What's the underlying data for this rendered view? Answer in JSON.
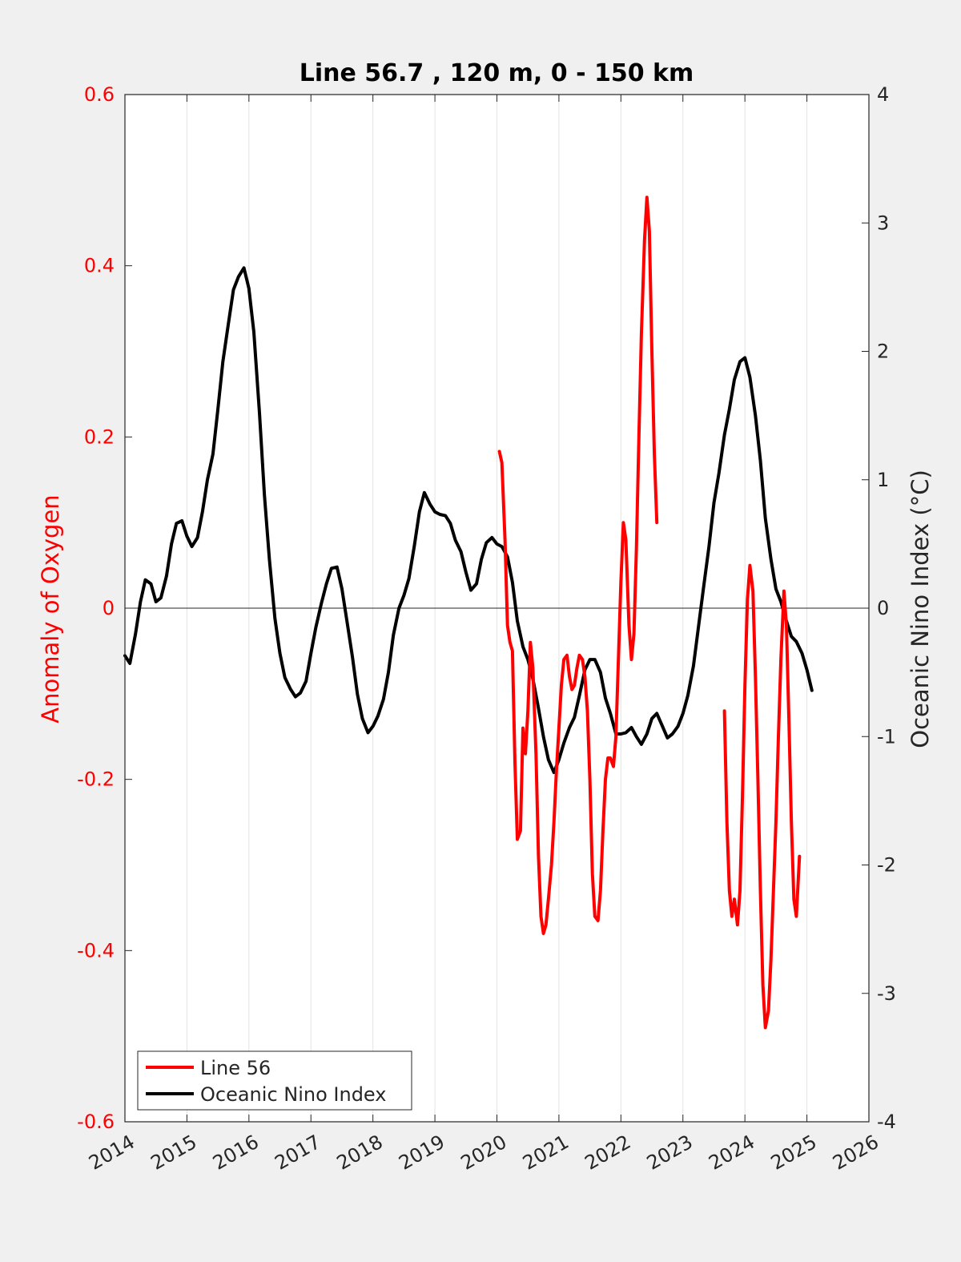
{
  "chart_data": {
    "type": "line",
    "title": "Line 56.7 , 120 m, 0 - 150 km",
    "ylabel_left": "Anomaly of Oxygen",
    "ylabel_right": "Oceanic Nino Index (°C)",
    "xlim": [
      2014,
      2026
    ],
    "ylim_left": [
      -0.6,
      0.6
    ],
    "ylim_right": [
      -4,
      4
    ],
    "xticks": [
      "2014",
      "2015",
      "2016",
      "2017",
      "2018",
      "2019",
      "2020",
      "2021",
      "2022",
      "2023",
      "2024",
      "2025",
      "2026"
    ],
    "yticks_left": [
      "0.6",
      "0.4",
      "0.2",
      "0",
      "-0.2",
      "-0.4",
      "-0.6"
    ],
    "yticks_right": [
      "4",
      "3",
      "2",
      "1",
      "0",
      "-1",
      "-2",
      "-3",
      "-4"
    ],
    "grid": "vertical",
    "zero_line": true,
    "legend_position": "bottom-left",
    "colors": {
      "line56": "#ff0000",
      "oni": "#000000",
      "left_axis": "#ff0000",
      "right_axis": "#262626"
    },
    "series": [
      {
        "name": "Line 56",
        "axis": "left",
        "segments": [
          [
            [
              2020.04,
              0.183
            ],
            [
              2020.08,
              0.17
            ],
            [
              2020.13,
              0.08
            ],
            [
              2020.17,
              -0.02
            ],
            [
              2020.21,
              -0.04
            ],
            [
              2020.25,
              -0.05
            ],
            [
              2020.29,
              -0.18
            ],
            [
              2020.33,
              -0.27
            ],
            [
              2020.38,
              -0.26
            ],
            [
              2020.42,
              -0.14
            ],
            [
              2020.46,
              -0.17
            ],
            [
              2020.5,
              -0.12
            ],
            [
              2020.54,
              -0.04
            ],
            [
              2020.58,
              -0.07
            ],
            [
              2020.63,
              -0.17
            ],
            [
              2020.67,
              -0.29
            ],
            [
              2020.71,
              -0.36
            ],
            [
              2020.75,
              -0.38
            ],
            [
              2020.79,
              -0.37
            ],
            [
              2020.83,
              -0.34
            ],
            [
              2020.88,
              -0.3
            ],
            [
              2020.92,
              -0.25
            ],
            [
              2020.96,
              -0.19
            ],
            [
              2021.0,
              -0.14
            ],
            [
              2021.04,
              -0.09
            ],
            [
              2021.08,
              -0.06
            ],
            [
              2021.13,
              -0.055
            ],
            [
              2021.17,
              -0.08
            ],
            [
              2021.21,
              -0.095
            ],
            [
              2021.25,
              -0.09
            ],
            [
              2021.29,
              -0.07
            ],
            [
              2021.33,
              -0.055
            ],
            [
              2021.38,
              -0.06
            ],
            [
              2021.42,
              -0.08
            ],
            [
              2021.46,
              -0.12
            ],
            [
              2021.5,
              -0.2
            ],
            [
              2021.54,
              -0.31
            ],
            [
              2021.58,
              -0.36
            ],
            [
              2021.63,
              -0.365
            ],
            [
              2021.67,
              -0.33
            ],
            [
              2021.71,
              -0.26
            ],
            [
              2021.75,
              -0.2
            ],
            [
              2021.79,
              -0.175
            ],
            [
              2021.83,
              -0.175
            ],
            [
              2021.88,
              -0.185
            ],
            [
              2021.92,
              -0.15
            ],
            [
              2021.96,
              -0.06
            ],
            [
              2022.0,
              0.03
            ],
            [
              2022.04,
              0.1
            ],
            [
              2022.08,
              0.08
            ],
            [
              2022.13,
              -0.02
            ],
            [
              2022.17,
              -0.06
            ],
            [
              2022.21,
              -0.03
            ],
            [
              2022.25,
              0.07
            ],
            [
              2022.29,
              0.2
            ],
            [
              2022.33,
              0.32
            ],
            [
              2022.38,
              0.43
            ],
            [
              2022.42,
              0.48
            ],
            [
              2022.46,
              0.44
            ],
            [
              2022.5,
              0.3
            ],
            [
              2022.54,
              0.18
            ],
            [
              2022.58,
              0.1
            ]
          ],
          [
            [
              2023.67,
              -0.12
            ],
            [
              2023.71,
              -0.25
            ],
            [
              2023.75,
              -0.33
            ],
            [
              2023.79,
              -0.36
            ],
            [
              2023.83,
              -0.34
            ],
            [
              2023.88,
              -0.37
            ],
            [
              2023.92,
              -0.33
            ],
            [
              2023.96,
              -0.22
            ],
            [
              2024.0,
              -0.09
            ],
            [
              2024.04,
              0.01
            ],
            [
              2024.08,
              0.05
            ],
            [
              2024.13,
              0.02
            ],
            [
              2024.17,
              -0.08
            ],
            [
              2024.21,
              -0.2
            ],
            [
              2024.25,
              -0.33
            ],
            [
              2024.29,
              -0.44
            ],
            [
              2024.33,
              -0.49
            ],
            [
              2024.38,
              -0.47
            ],
            [
              2024.42,
              -0.41
            ],
            [
              2024.46,
              -0.33
            ],
            [
              2024.5,
              -0.25
            ],
            [
              2024.54,
              -0.15
            ],
            [
              2024.58,
              -0.06
            ],
            [
              2024.63,
              0.02
            ],
            [
              2024.67,
              -0.02
            ],
            [
              2024.71,
              -0.13
            ],
            [
              2024.75,
              -0.25
            ],
            [
              2024.79,
              -0.34
            ],
            [
              2024.83,
              -0.36
            ],
            [
              2024.88,
              -0.29
            ]
          ]
        ]
      },
      {
        "name": "Oceanic Nino Index",
        "axis": "right",
        "segments": [
          [
            [
              2014.0,
              -0.37
            ],
            [
              2014.08,
              -0.43
            ],
            [
              2014.17,
              -0.2
            ],
            [
              2014.25,
              0.05
            ],
            [
              2014.33,
              0.22
            ],
            [
              2014.42,
              0.19
            ],
            [
              2014.5,
              0.05
            ],
            [
              2014.58,
              0.08
            ],
            [
              2014.67,
              0.25
            ],
            [
              2014.75,
              0.5
            ],
            [
              2014.83,
              0.66
            ],
            [
              2014.92,
              0.68
            ],
            [
              2015.0,
              0.56
            ],
            [
              2015.08,
              0.48
            ],
            [
              2015.17,
              0.55
            ],
            [
              2015.25,
              0.75
            ],
            [
              2015.33,
              1.0
            ],
            [
              2015.42,
              1.2
            ],
            [
              2015.5,
              1.55
            ],
            [
              2015.58,
              1.92
            ],
            [
              2015.67,
              2.22
            ],
            [
              2015.75,
              2.48
            ],
            [
              2015.83,
              2.58
            ],
            [
              2015.92,
              2.65
            ],
            [
              2016.0,
              2.49
            ],
            [
              2016.08,
              2.15
            ],
            [
              2016.17,
              1.52
            ],
            [
              2016.25,
              0.88
            ],
            [
              2016.33,
              0.38
            ],
            [
              2016.42,
              -0.08
            ],
            [
              2016.5,
              -0.35
            ],
            [
              2016.58,
              -0.54
            ],
            [
              2016.67,
              -0.63
            ],
            [
              2016.75,
              -0.69
            ],
            [
              2016.83,
              -0.66
            ],
            [
              2016.92,
              -0.57
            ],
            [
              2017.0,
              -0.35
            ],
            [
              2017.08,
              -0.15
            ],
            [
              2017.17,
              0.04
            ],
            [
              2017.25,
              0.19
            ],
            [
              2017.33,
              0.31
            ],
            [
              2017.42,
              0.32
            ],
            [
              2017.5,
              0.15
            ],
            [
              2017.58,
              -0.1
            ],
            [
              2017.67,
              -0.38
            ],
            [
              2017.75,
              -0.67
            ],
            [
              2017.83,
              -0.86
            ],
            [
              2017.92,
              -0.97
            ],
            [
              2018.0,
              -0.92
            ],
            [
              2018.08,
              -0.84
            ],
            [
              2018.17,
              -0.71
            ],
            [
              2018.25,
              -0.5
            ],
            [
              2018.33,
              -0.21
            ],
            [
              2018.42,
              0.0
            ],
            [
              2018.5,
              0.1
            ],
            [
              2018.58,
              0.23
            ],
            [
              2018.67,
              0.49
            ],
            [
              2018.75,
              0.75
            ],
            [
              2018.83,
              0.9
            ],
            [
              2018.92,
              0.81
            ],
            [
              2019.0,
              0.75
            ],
            [
              2019.08,
              0.73
            ],
            [
              2019.17,
              0.72
            ],
            [
              2019.25,
              0.66
            ],
            [
              2019.33,
              0.53
            ],
            [
              2019.42,
              0.44
            ],
            [
              2019.5,
              0.28
            ],
            [
              2019.58,
              0.14
            ],
            [
              2019.67,
              0.19
            ],
            [
              2019.75,
              0.38
            ],
            [
              2019.83,
              0.51
            ],
            [
              2019.92,
              0.55
            ],
            [
              2020.0,
              0.5
            ],
            [
              2020.08,
              0.48
            ],
            [
              2020.17,
              0.4
            ],
            [
              2020.25,
              0.2
            ],
            [
              2020.33,
              -0.1
            ],
            [
              2020.42,
              -0.3
            ],
            [
              2020.5,
              -0.4
            ],
            [
              2020.58,
              -0.55
            ],
            [
              2020.67,
              -0.78
            ],
            [
              2020.75,
              -1.0
            ],
            [
              2020.83,
              -1.18
            ],
            [
              2020.92,
              -1.28
            ],
            [
              2021.0,
              -1.18
            ],
            [
              2021.08,
              -1.05
            ],
            [
              2021.17,
              -0.93
            ],
            [
              2021.25,
              -0.85
            ],
            [
              2021.33,
              -0.68
            ],
            [
              2021.42,
              -0.48
            ],
            [
              2021.5,
              -0.4
            ],
            [
              2021.58,
              -0.4
            ],
            [
              2021.67,
              -0.5
            ],
            [
              2021.75,
              -0.7
            ],
            [
              2021.83,
              -0.82
            ],
            [
              2021.92,
              -0.98
            ],
            [
              2022.0,
              -0.98
            ],
            [
              2022.08,
              -0.97
            ],
            [
              2022.17,
              -0.93
            ],
            [
              2022.25,
              -1.0
            ],
            [
              2022.33,
              -1.06
            ],
            [
              2022.42,
              -0.98
            ],
            [
              2022.5,
              -0.86
            ],
            [
              2022.58,
              -0.82
            ],
            [
              2022.67,
              -0.92
            ],
            [
              2022.75,
              -1.01
            ],
            [
              2022.83,
              -0.98
            ],
            [
              2022.92,
              -0.92
            ],
            [
              2023.0,
              -0.82
            ],
            [
              2023.08,
              -0.68
            ],
            [
              2023.17,
              -0.45
            ],
            [
              2023.25,
              -0.15
            ],
            [
              2023.33,
              0.15
            ],
            [
              2023.42,
              0.48
            ],
            [
              2023.5,
              0.82
            ],
            [
              2023.58,
              1.05
            ],
            [
              2023.67,
              1.35
            ],
            [
              2023.75,
              1.55
            ],
            [
              2023.83,
              1.78
            ],
            [
              2023.92,
              1.92
            ],
            [
              2024.0,
              1.95
            ],
            [
              2024.08,
              1.8
            ],
            [
              2024.17,
              1.5
            ],
            [
              2024.25,
              1.15
            ],
            [
              2024.33,
              0.7
            ],
            [
              2024.42,
              0.38
            ],
            [
              2024.5,
              0.15
            ],
            [
              2024.58,
              0.05
            ],
            [
              2024.67,
              -0.1
            ],
            [
              2024.75,
              -0.22
            ],
            [
              2024.83,
              -0.26
            ],
            [
              2024.92,
              -0.35
            ],
            [
              2025.0,
              -0.48
            ],
            [
              2025.08,
              -0.64
            ]
          ]
        ]
      }
    ]
  }
}
